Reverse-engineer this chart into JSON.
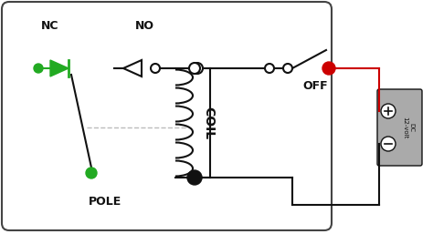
{
  "bg_color": "#ffffff",
  "box_color": "#444444",
  "green_color": "#22aa22",
  "red_color": "#cc0000",
  "black_color": "#111111",
  "dashed_color": "#bbbbbb",
  "dc_box_color": "#aaaaaa",
  "nc_label": "NC",
  "no_label": "NO",
  "pole_label": "POLE",
  "coil_label": "COIL",
  "off_label": "OFF"
}
